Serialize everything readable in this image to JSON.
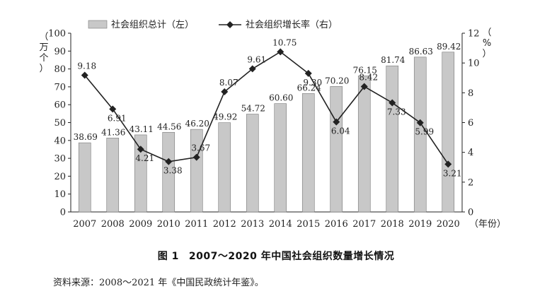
{
  "chart_data": {
    "type": "bar",
    "categories": [
      "2007",
      "2008",
      "2009",
      "2010",
      "2011",
      "2012",
      "2013",
      "2014",
      "2015",
      "2016",
      "2017",
      "2018",
      "2019",
      "2020"
    ],
    "series": [
      {
        "name": "社会组织总计（左）",
        "type": "bar",
        "axis": "left",
        "values": [
          38.69,
          41.36,
          43.11,
          44.56,
          46.2,
          49.92,
          54.72,
          60.6,
          66.24,
          70.2,
          76.15,
          81.74,
          86.63,
          89.42
        ],
        "labels": [
          "38.69",
          "41.36",
          "43.11",
          "44.56",
          "46.20",
          "49.92",
          "54.72",
          "60.60",
          "66.24",
          "70.20",
          "76.15",
          "81.74",
          "86.63",
          "89.42"
        ],
        "color": "#c8c8c8"
      },
      {
        "name": "社会组织增长率（右）",
        "type": "line",
        "axis": "right",
        "values": [
          9.18,
          6.91,
          4.21,
          3.38,
          3.67,
          8.07,
          9.61,
          10.75,
          9.3,
          6.04,
          8.42,
          7.33,
          5.99,
          3.21
        ],
        "labels": [
          "9.18",
          "6.91",
          "4.21",
          "3.38",
          "3.67",
          "8.07",
          "9.61",
          "10.75",
          "9.30",
          "6.04",
          "8.42",
          "7.33",
          "5.99",
          "3.21"
        ],
        "color": "#222222"
      }
    ],
    "y_left": {
      "label": "（万个）",
      "ylim": [
        0,
        100
      ],
      "ticks": [
        "0",
        "10",
        "20",
        "30",
        "40",
        "50",
        "60",
        "70",
        "80",
        "90",
        "100"
      ]
    },
    "y_right": {
      "label": "（%）",
      "ylim": [
        0,
        12
      ],
      "ticks": [
        "0",
        "2",
        "4",
        "6",
        "8",
        "10",
        "12"
      ]
    },
    "x_unit_label": "（年份）",
    "legend_position": "top",
    "grid": false
  },
  "caption": {
    "fig": "图 1",
    "title": "2007～2020 年中国社会组织数量增长情况"
  },
  "source": "资料来源：2008～2021 年《中国民政统计年鉴》。"
}
